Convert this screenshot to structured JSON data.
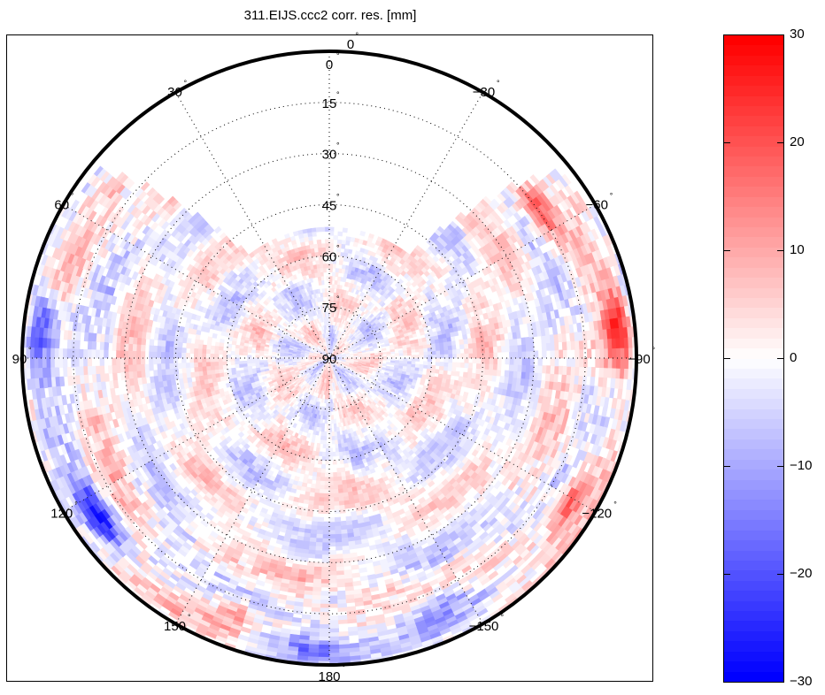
{
  "chart_data": {
    "type": "heatmap",
    "subtype": "polar-skyplot",
    "title": "311.EIJS.ccc2 corr. res. [mm]",
    "radial_axis": {
      "quantity": "elevation",
      "unit": "deg",
      "range": [
        0,
        90
      ],
      "tick_labels": [
        "0",
        "15",
        "30",
        "45",
        "60",
        "75",
        "90"
      ],
      "edge_label": "0",
      "center_label": "90"
    },
    "angular_axis": {
      "quantity": "azimuth",
      "unit": "deg",
      "direction": "counter-clockwise",
      "zero_location": "top",
      "tick_values": [
        0,
        30,
        60,
        90,
        120,
        150,
        180,
        -150,
        -120,
        -90,
        -60,
        -30
      ],
      "tick_labels": [
        "0",
        "30",
        "60",
        "90",
        "120",
        "150",
        "180",
        "−150",
        "−120",
        "−90",
        "−60",
        "−30"
      ]
    },
    "degree_symbol": "°",
    "grid": "dotted",
    "colorbar": {
      "range": [
        -30,
        30
      ],
      "colormap": "blue-white-red",
      "ticks": [
        30,
        20,
        10,
        0,
        -10,
        -20,
        -30
      ],
      "tick_labels": [
        "30",
        "20",
        "10",
        "0",
        "−10",
        "−20",
        "−30"
      ],
      "levels": 64,
      "low_color": "#0000ff",
      "mid_color": "#ffffff",
      "high_color": "#ff0000"
    },
    "data_gap": {
      "description": "no observations in northern sector",
      "azimuth_range": [
        -38,
        38
      ],
      "max_elevation": 52
    },
    "notable_regions": [
      {
        "azimuth": 85,
        "elevation": 5,
        "value": -20
      },
      {
        "azimuth": -55,
        "elevation": 15,
        "value": 22
      },
      {
        "azimuth": -85,
        "elevation": 5,
        "value": 25
      },
      {
        "azimuth": 125,
        "elevation": 8,
        "value": -25
      },
      {
        "azimuth": -120,
        "elevation": 8,
        "value": 18
      },
      {
        "azimuth": 175,
        "elevation": 5,
        "value": -15
      },
      {
        "azimuth": 160,
        "elevation": 10,
        "value": 12
      },
      {
        "azimuth": -155,
        "elevation": 10,
        "value": -15
      }
    ]
  }
}
